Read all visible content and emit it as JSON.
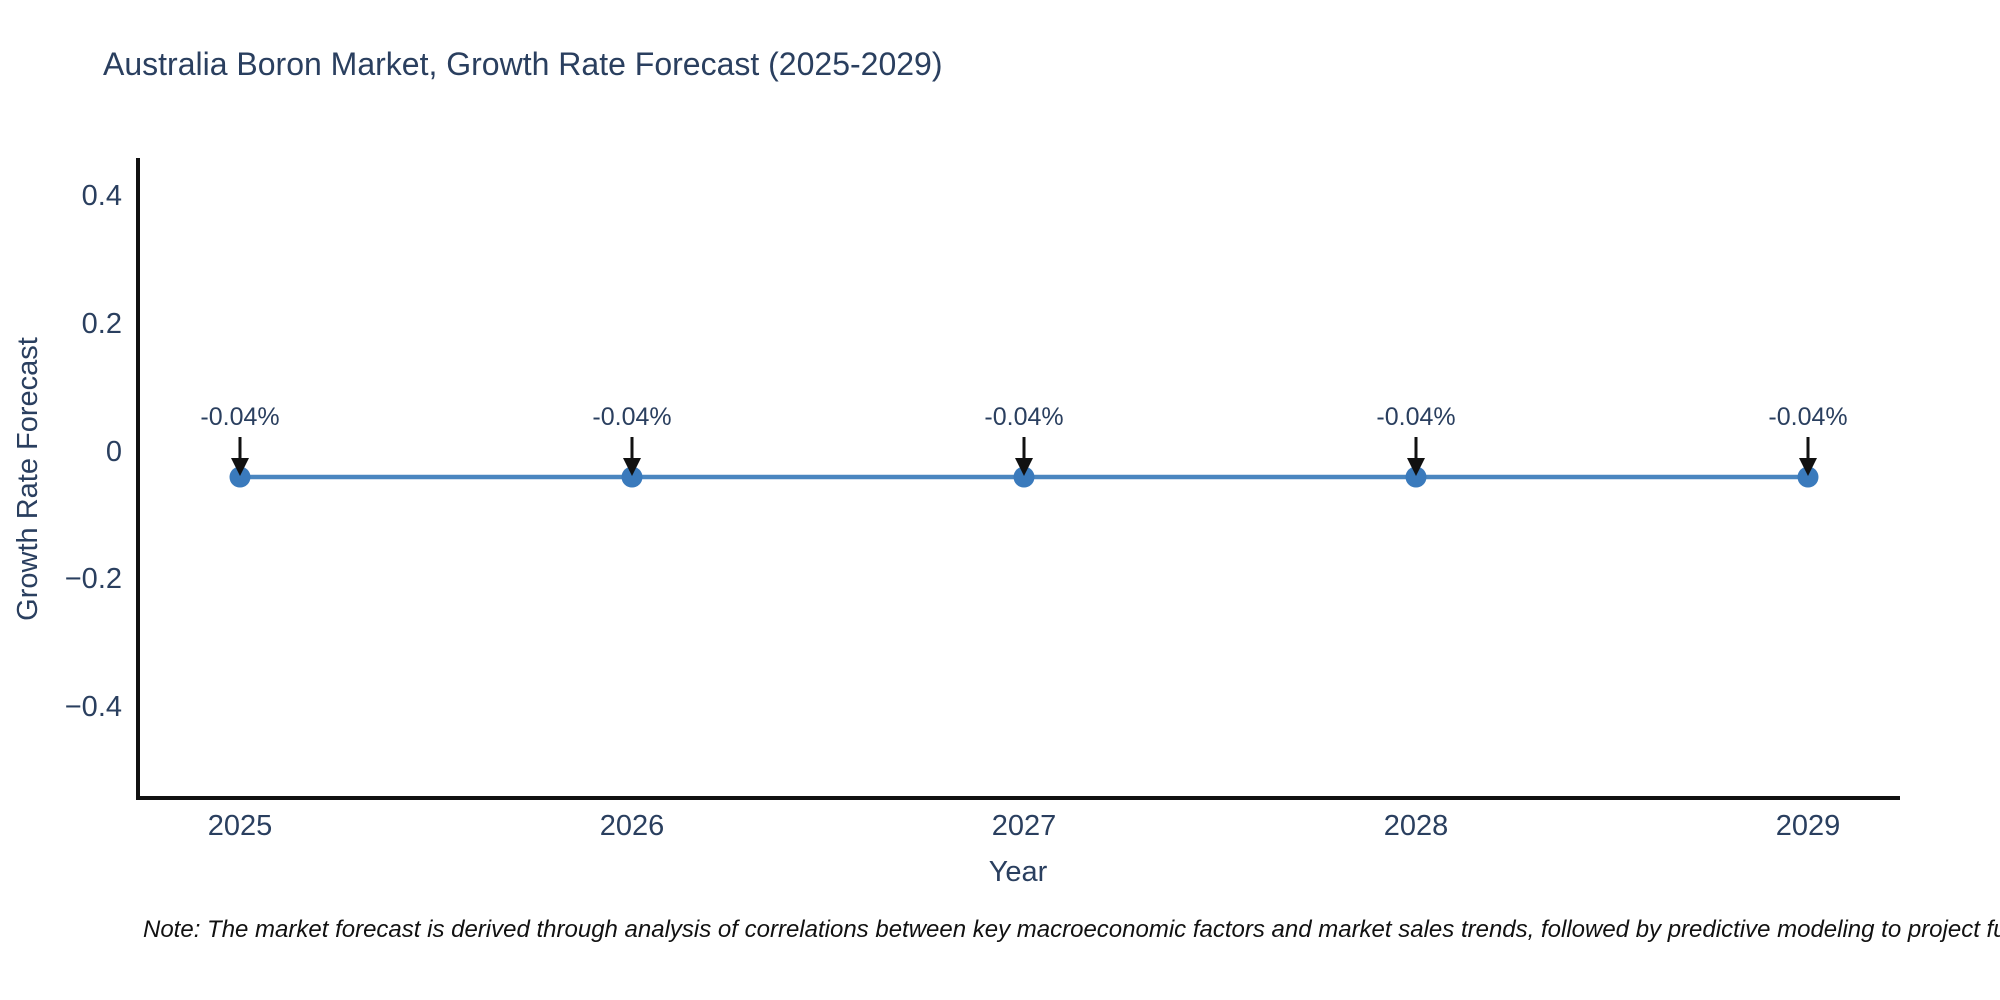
{
  "title": {
    "text": "Australia Boron Market, Growth Rate Forecast (2025-2029)",
    "color": "#2a3f5f"
  },
  "note": {
    "text": "Note: The market forecast is derived through analysis of correlations between key macroeconomic factors and market sales trends, followed by predictive modeling to project future sales."
  },
  "chart_data": {
    "type": "line",
    "title": "Australia Boron Market, Growth Rate Forecast (2025-2029)",
    "xlabel": "Year",
    "ylabel": "Growth Rate Forecast",
    "x": [
      2025,
      2026,
      2027,
      2028,
      2029
    ],
    "y": [
      -0.04,
      -0.04,
      -0.04,
      -0.04,
      -0.04
    ],
    "point_labels": [
      "-0.04%",
      "-0.04%",
      "-0.04%",
      "-0.04%",
      "-0.04%"
    ],
    "x_tick_labels": [
      "2025",
      "2026",
      "2027",
      "2028",
      "2029"
    ],
    "y_ticks": [
      0.4,
      0.2,
      0,
      -0.2,
      -0.4
    ],
    "y_tick_labels": [
      "0.4",
      "0.2",
      "0",
      "−0.2",
      "−0.4"
    ],
    "ylim": [
      -0.55,
      0.46
    ],
    "xlim": [
      2024.74,
      2029.23
    ],
    "grid": false,
    "legend": "none",
    "line_color": "#4a86c0",
    "marker_color": "#3a7abc",
    "axis_color": "#111111",
    "annotation_arrow_color": "#111111",
    "text_color": "#2a3f5f"
  }
}
